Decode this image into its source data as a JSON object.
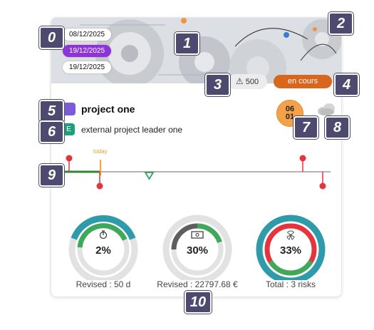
{
  "card": {
    "dates": [
      "08/12/2025",
      "19/12/2025",
      "19/12/2025"
    ],
    "alert_count": "500",
    "status": "en cours",
    "project_name": "project one",
    "leader_initial": "E",
    "leader_name": "external project leader one",
    "date_circle": {
      "line1": "06",
      "line2": "01"
    }
  },
  "timeline": {
    "today_label": "today"
  },
  "rings": [
    {
      "percent": "2%",
      "label": "Revised : 50 d"
    },
    {
      "percent": "30%",
      "label": "Revised : 22797.68 €"
    },
    {
      "percent": "33%",
      "label": "Total : 3 risks"
    }
  ],
  "annotations": [
    "0",
    "1",
    "2",
    "3",
    "4",
    "5",
    "6",
    "7",
    "8",
    "9",
    "10"
  ],
  "colors": {
    "purple": "#8e33d6",
    "orange": "#d9661d",
    "teal": "#2e9aaa",
    "green": "#3fa95a",
    "red": "#e5343e",
    "navy": "#4d4a70"
  },
  "icons": [
    "warning-icon",
    "stopwatch-icon",
    "money-icon",
    "radiation-icon",
    "cloud-icon"
  ]
}
